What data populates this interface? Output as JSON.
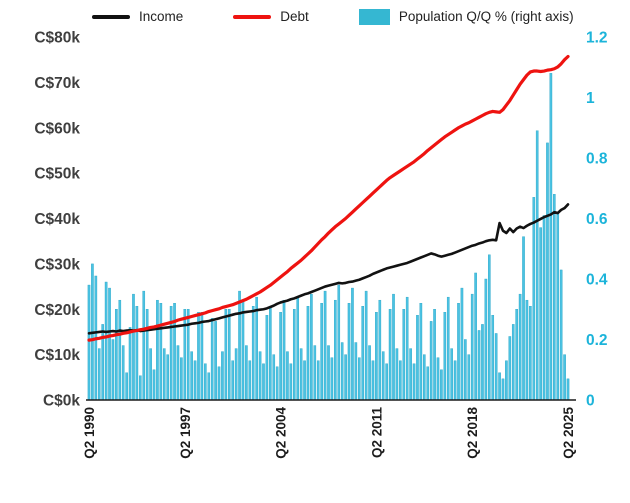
{
  "page": {
    "background": "#ffffff"
  },
  "legend": {
    "items": [
      {
        "label": "Income",
        "swatch": "line",
        "color": "#111111"
      },
      {
        "label": "Debt",
        "swatch": "line",
        "color": "#ee1310"
      },
      {
        "label": "Population Q/Q % (right axis)",
        "swatch": "rect",
        "color": "#35b7d2"
      }
    ]
  },
  "chart_data": {
    "type": "combo-bar-line",
    "x": {
      "freq": "quarterly",
      "start": "Q2 1990",
      "end": "Q2 2025",
      "tick_labels": [
        "Q2 1990",
        "Q2 1997",
        "Q2 2004",
        "Q2 2011",
        "Q2 2018",
        "Q2 2025"
      ],
      "tick_positions": [
        0,
        28,
        56,
        84,
        112,
        140
      ],
      "label_color": "#1c1c1c"
    },
    "left_axis": {
      "unit": "C$ thousands",
      "min_k": 0,
      "max_k": 80,
      "ticks_k": [
        0,
        10,
        20,
        30,
        40,
        50,
        60,
        70,
        80
      ],
      "tick_labels": [
        "C$0k",
        "C$10k",
        "C$20k",
        "C$30k",
        "C$40k",
        "C$50k",
        "C$60k",
        "C$70k",
        "C$80k"
      ],
      "color": "#3f3f3f"
    },
    "right_axis": {
      "unit": "percent",
      "min": 0,
      "max": 1.2,
      "ticks": [
        0,
        0.2,
        0.4,
        0.6,
        0.8,
        1,
        1.2
      ],
      "tick_labels": [
        "0",
        "0.2",
        "0.4",
        "0.6",
        "0.8",
        "1",
        "1.2"
      ],
      "color": "#1cb4da"
    },
    "baseline_color": "#1a1a1a",
    "series": [
      {
        "name": "Income",
        "type": "line",
        "axis": "left",
        "color": "#121212",
        "width": 2.6,
        "values_k": [
          14.7,
          14.8,
          14.9,
          15.0,
          15.1,
          15.0,
          15.1,
          15.2,
          15.1,
          15.3,
          15.2,
          15.3,
          15.4,
          15.3,
          15.4,
          15.2,
          15.3,
          15.4,
          15.5,
          15.6,
          15.7,
          15.8,
          15.9,
          16.0,
          16.1,
          16.2,
          16.3,
          16.4,
          16.5,
          16.6,
          16.8,
          16.9,
          17.0,
          17.2,
          17.3,
          17.4,
          17.6,
          17.8,
          18.0,
          18.2,
          18.4,
          18.6,
          18.8,
          19.0,
          19.1,
          19.3,
          19.4,
          19.5,
          19.6,
          19.8,
          19.9,
          20.0,
          20.2,
          20.5,
          20.8,
          21.2,
          21.5,
          21.7,
          21.9,
          22.2,
          22.4,
          22.7,
          23.0,
          23.3,
          23.5,
          23.8,
          24.1,
          24.4,
          24.7,
          25.0,
          25.2,
          25.4,
          25.6,
          25.8,
          25.7,
          25.8,
          26.0,
          26.1,
          26.3,
          26.5,
          26.8,
          27.1,
          27.4,
          27.8,
          28.1,
          28.4,
          28.7,
          29.0,
          29.2,
          29.4,
          29.6,
          29.8,
          30.0,
          30.2,
          30.5,
          30.8,
          31.1,
          31.4,
          31.7,
          32.0,
          32.3,
          32.1,
          31.8,
          31.6,
          31.8,
          32.0,
          32.2,
          32.5,
          32.8,
          33.1,
          33.4,
          33.7,
          34.0,
          34.2,
          34.5,
          34.7,
          35.0,
          35.2,
          35.3,
          35.2,
          39.0,
          37.3,
          36.8,
          37.8,
          37.0,
          37.8,
          38.2,
          37.9,
          38.4,
          38.8,
          39.1,
          39.5,
          39.9,
          40.3,
          40.6,
          40.9,
          41.4,
          41.2,
          41.9,
          42.3,
          43.1
        ]
      },
      {
        "name": "Debt",
        "type": "line",
        "axis": "left",
        "color": "#ee1310",
        "width": 3.2,
        "values_k": [
          13.2,
          13.3,
          13.5,
          13.6,
          13.8,
          13.9,
          14.1,
          14.2,
          14.4,
          14.5,
          14.7,
          14.8,
          15.0,
          15.2,
          15.3,
          15.5,
          15.6,
          15.8,
          16.0,
          16.1,
          16.3,
          16.5,
          16.7,
          16.9,
          17.1,
          17.3,
          17.6,
          17.8,
          18.0,
          18.2,
          18.4,
          18.6,
          18.8,
          19.0,
          19.2,
          19.5,
          19.7,
          19.9,
          20.1,
          20.4,
          20.6,
          20.8,
          21.0,
          21.3,
          21.6,
          21.9,
          22.2,
          22.6,
          23.0,
          23.4,
          23.8,
          24.3,
          24.8,
          25.3,
          25.9,
          26.5,
          27.1,
          27.7,
          28.3,
          29.0,
          29.6,
          30.2,
          30.8,
          31.5,
          32.2,
          32.9,
          33.7,
          34.5,
          35.3,
          36.0,
          36.8,
          37.5,
          38.2,
          38.8,
          39.4,
          40.0,
          40.7,
          41.4,
          42.1,
          42.8,
          43.5,
          44.2,
          44.9,
          45.6,
          46.3,
          47.0,
          47.7,
          48.4,
          49.0,
          49.5,
          50.0,
          50.5,
          51.0,
          51.5,
          52.0,
          52.5,
          53.1,
          53.7,
          54.3,
          55.0,
          55.6,
          56.2,
          56.8,
          57.4,
          58.0,
          58.5,
          59.0,
          59.5,
          60.0,
          60.4,
          60.8,
          61.1,
          61.5,
          61.9,
          62.3,
          62.7,
          63.1,
          63.4,
          63.6,
          63.5,
          63.4,
          64.0,
          65.0,
          66.0,
          67.2,
          68.4,
          69.6,
          70.6,
          71.6,
          72.3,
          72.5,
          72.5,
          72.4,
          72.5,
          72.7,
          72.8,
          73.0,
          73.4,
          74.1,
          75.0,
          75.7
        ]
      },
      {
        "name": "Population Q/Q %",
        "type": "bar",
        "axis": "right",
        "color": "#4bc2e2",
        "values_pct": [
          0.38,
          0.45,
          0.41,
          0.17,
          0.25,
          0.39,
          0.37,
          0.2,
          0.3,
          0.33,
          0.18,
          0.09,
          0.24,
          0.35,
          0.31,
          0.08,
          0.36,
          0.3,
          0.17,
          0.1,
          0.33,
          0.32,
          0.17,
          0.15,
          0.31,
          0.32,
          0.18,
          0.14,
          0.3,
          0.3,
          0.16,
          0.13,
          0.29,
          0.29,
          0.12,
          0.09,
          0.27,
          0.26,
          0.11,
          0.16,
          0.3,
          0.3,
          0.13,
          0.17,
          0.36,
          0.33,
          0.18,
          0.13,
          0.31,
          0.34,
          0.16,
          0.12,
          0.28,
          0.31,
          0.15,
          0.11,
          0.29,
          0.33,
          0.16,
          0.12,
          0.3,
          0.34,
          0.17,
          0.13,
          0.31,
          0.35,
          0.18,
          0.13,
          0.32,
          0.36,
          0.18,
          0.14,
          0.33,
          0.38,
          0.19,
          0.15,
          0.32,
          0.37,
          0.19,
          0.14,
          0.31,
          0.36,
          0.18,
          0.13,
          0.29,
          0.33,
          0.16,
          0.12,
          0.3,
          0.35,
          0.17,
          0.13,
          0.3,
          0.34,
          0.17,
          0.12,
          0.28,
          0.32,
          0.15,
          0.11,
          0.26,
          0.3,
          0.14,
          0.1,
          0.29,
          0.34,
          0.17,
          0.13,
          0.32,
          0.37,
          0.2,
          0.15,
          0.35,
          0.42,
          0.23,
          0.25,
          0.4,
          0.48,
          0.28,
          0.22,
          0.09,
          0.07,
          0.13,
          0.21,
          0.25,
          0.3,
          0.35,
          0.54,
          0.33,
          0.31,
          0.67,
          0.89,
          0.57,
          0.61,
          0.85,
          1.08,
          0.68,
          0.62,
          0.43,
          0.15,
          0.07
        ]
      }
    ]
  }
}
